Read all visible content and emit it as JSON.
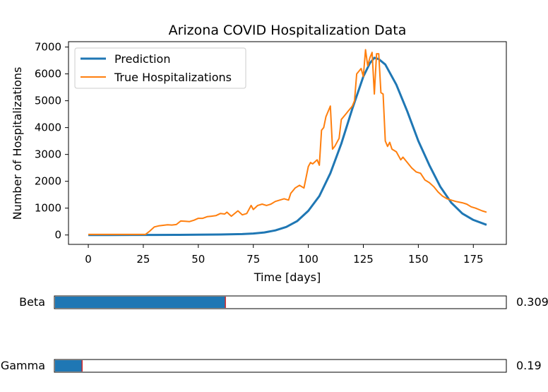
{
  "chart_data": {
    "type": "line",
    "title": "Arizona COVID Hospitalization Data",
    "xlabel": "Time [days]",
    "ylabel": "Number of Hospitalizations",
    "xlim": [
      -9,
      190
    ],
    "ylim": [
      -350,
      7200
    ],
    "xticks": [
      0,
      25,
      50,
      75,
      100,
      125,
      150,
      175
    ],
    "yticks": [
      0,
      1000,
      2000,
      3000,
      4000,
      5000,
      6000,
      7000
    ],
    "grid": false,
    "legend_position": "top-left",
    "colors": {
      "prediction": "#1f77b4",
      "truth": "#ff7f0e",
      "slider_fill": "#1f77b4",
      "slider_marker": "#d62728"
    },
    "series": [
      {
        "name": "Prediction",
        "x": [
          0,
          10,
          20,
          30,
          40,
          50,
          60,
          70,
          75,
          80,
          85,
          90,
          95,
          100,
          105,
          110,
          115,
          120,
          125,
          128,
          130,
          132,
          135,
          140,
          145,
          150,
          155,
          160,
          165,
          170,
          175,
          181
        ],
        "values": [
          0,
          1,
          2,
          3,
          6,
          10,
          18,
          35,
          55,
          95,
          170,
          300,
          520,
          900,
          1450,
          2300,
          3400,
          4700,
          5900,
          6400,
          6600,
          6550,
          6350,
          5600,
          4600,
          3500,
          2600,
          1800,
          1200,
          800,
          560,
          380
        ]
      },
      {
        "name": "True Hospitalizations",
        "x": [
          0,
          26,
          28,
          30,
          32,
          34,
          36,
          38,
          40,
          42,
          44,
          46,
          48,
          50,
          52,
          54,
          56,
          58,
          60,
          62,
          63,
          65,
          68,
          70,
          72,
          74,
          75,
          77,
          79,
          81,
          83,
          85,
          87,
          89,
          91,
          92,
          94,
          96,
          98,
          100,
          101,
          102,
          104,
          105,
          106,
          107,
          108,
          110,
          111,
          112,
          114,
          115,
          117,
          118,
          120,
          121,
          122,
          124,
          125,
          126,
          127,
          128,
          129,
          130,
          131,
          132,
          133,
          134,
          135,
          136,
          137,
          138,
          140,
          142,
          143,
          145,
          147,
          149,
          151,
          153,
          155,
          157,
          159,
          161,
          163,
          165,
          167,
          170,
          172,
          174,
          176,
          179,
          181
        ],
        "values": [
          20,
          20,
          150,
          300,
          340,
          360,
          380,
          370,
          390,
          520,
          510,
          500,
          550,
          620,
          620,
          680,
          700,
          720,
          800,
          780,
          850,
          700,
          900,
          750,
          800,
          1100,
          950,
          1100,
          1150,
          1100,
          1150,
          1250,
          1300,
          1350,
          1300,
          1550,
          1750,
          1850,
          1750,
          2550,
          2700,
          2650,
          2800,
          2600,
          3900,
          4000,
          4400,
          4800,
          3200,
          3300,
          3600,
          4300,
          4500,
          4600,
          4800,
          5000,
          6000,
          6200,
          5900,
          6900,
          6300,
          6600,
          6800,
          5250,
          6750,
          6750,
          5300,
          5250,
          3500,
          3300,
          3450,
          3200,
          3100,
          2800,
          2900,
          2700,
          2500,
          2350,
          2300,
          2050,
          1950,
          1800,
          1600,
          1450,
          1350,
          1300,
          1250,
          1200,
          1150,
          1050,
          1000,
          900,
          850
        ]
      }
    ],
    "sliders": [
      {
        "label": "Beta",
        "value_text": "0.309",
        "fill_fraction": 0.378,
        "marker_fraction": 0.378
      },
      {
        "label": "Gamma",
        "value_text": "0.19",
        "fill_fraction": 0.06,
        "marker_fraction": 0.06
      }
    ]
  }
}
